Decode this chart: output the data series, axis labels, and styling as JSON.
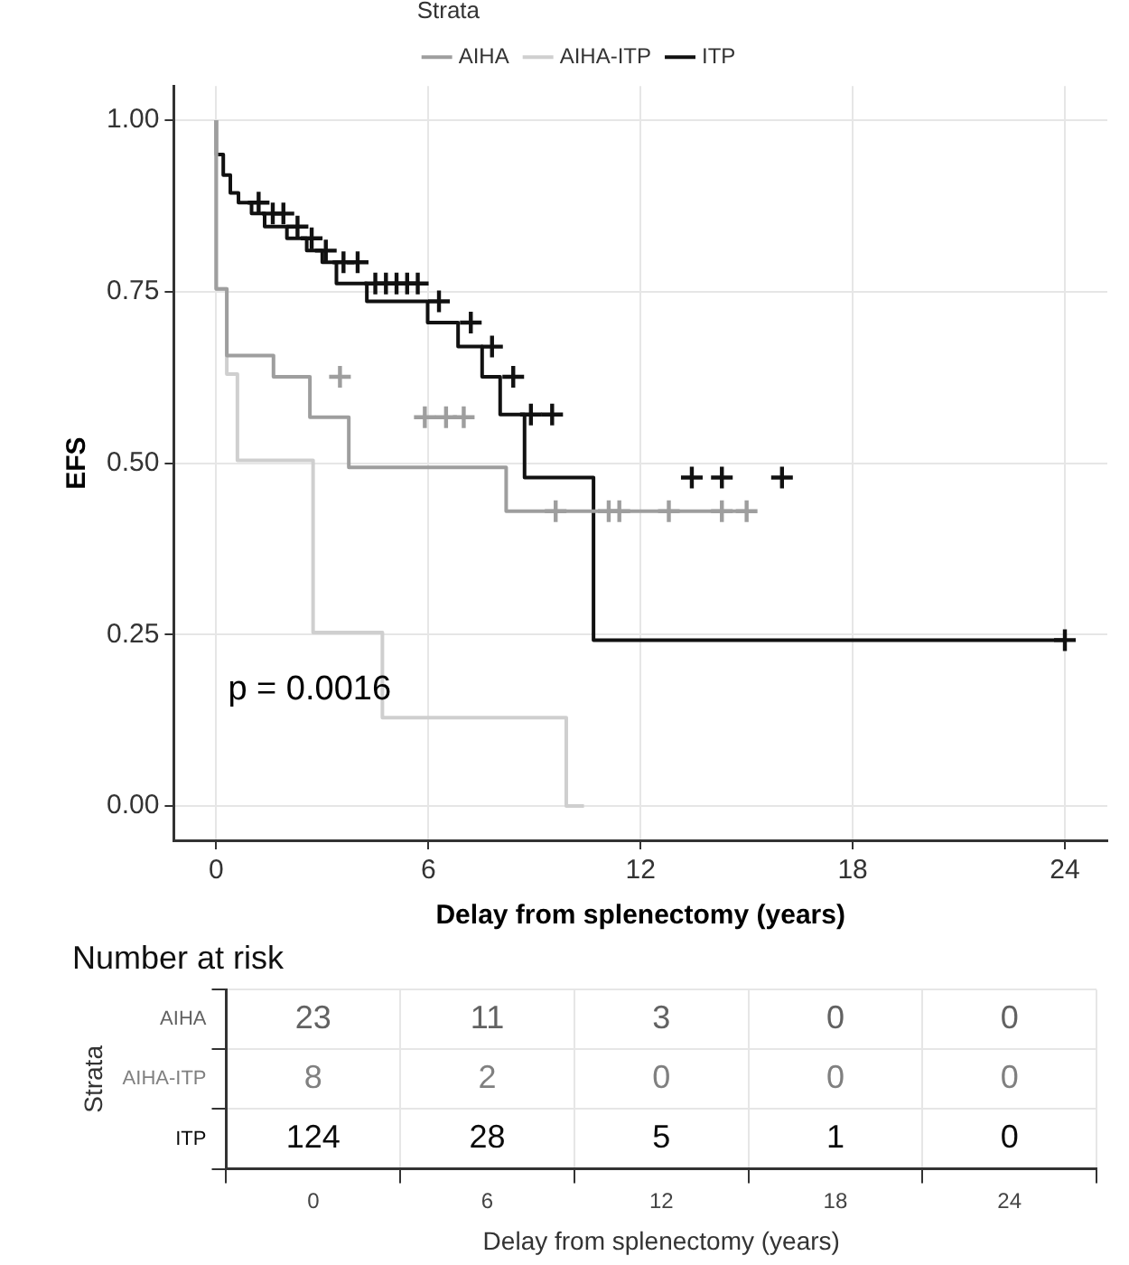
{
  "chart_data": [
    {
      "type": "step",
      "legend_title": "Strata",
      "legend": "top",
      "xlabel": "Delay from splenectomy (years)",
      "ylabel": "EFS",
      "annotations": [
        "p = 0.0016"
      ],
      "xlim": [
        -1.2,
        25.2
      ],
      "xticks": [
        0,
        6,
        12,
        18,
        24
      ],
      "ylim": [
        -0.05,
        1.05
      ],
      "yticks": [
        {
          "value": 0,
          "label": "0.00"
        },
        {
          "value": 0.25,
          "label": "0.25"
        },
        {
          "value": 0.5,
          "label": "0.50"
        },
        {
          "value": 0.75,
          "label": "0.75"
        },
        {
          "value": 1,
          "label": "1.00"
        }
      ],
      "grid": true,
      "series": [
        {
          "name": "AIHA",
          "color": "#9e9e9e",
          "x": [
            0,
            0.3,
            1.62,
            2.65,
            3.75,
            8.2,
            9.2,
            15.0
          ],
          "values": [
            1,
            0.754,
            0.657,
            0.626,
            0.567,
            0.494,
            0.43,
            0.43
          ]
        },
        {
          "name": "AIHA-ITP",
          "color": "#cfcfcf",
          "x": [
            0,
            0.3,
            0.6,
            2.74,
            4.7,
            9.9,
            10.4
          ],
          "values": [
            1,
            0.754,
            0.63,
            0.504,
            0.253,
            0.129,
            0
          ]
        },
        {
          "name": "ITP",
          "color": "#111111",
          "x": [
            0,
            0.2,
            0.4,
            0.63,
            1.0,
            1.37,
            2.0,
            2.56,
            3.0,
            3.4,
            4.26,
            5.98,
            6.84,
            7.52,
            8.03,
            8.72,
            10.67,
            17.2,
            24
          ],
          "values": [
            1,
            0.95,
            0.92,
            0.894,
            0.88,
            0.864,
            0.845,
            0.828,
            0.81,
            0.793,
            0.762,
            0.736,
            0.705,
            0.67,
            0.626,
            0.571,
            0.479,
            0.242,
            0.242
          ]
        },
        {
          "type": "scatter",
          "marker": "cross",
          "color": "#9e9e9e",
          "x": [
            3.5,
            5.9,
            6.5,
            7.0,
            9.6,
            11.1,
            11.4,
            12.8,
            14.3,
            15.0
          ],
          "values": [
            0.626,
            0.567,
            0.567,
            0.567,
            0.43,
            0.43,
            0.43,
            0.43,
            0.43,
            0.43
          ]
        },
        {
          "type": "scatter",
          "marker": "cross",
          "color": "#111111",
          "x": [
            1.2,
            1.6,
            1.9,
            2.3,
            2.7,
            3.1,
            3.6,
            4.0,
            4.5,
            4.8,
            5.1,
            5.4,
            5.7,
            6.3,
            7.2,
            7.8,
            8.4,
            8.9,
            9.5,
            13.45,
            14.3,
            16.0,
            24
          ],
          "values": [
            0.88,
            0.864,
            0.864,
            0.845,
            0.828,
            0.81,
            0.793,
            0.793,
            0.762,
            0.762,
            0.762,
            0.762,
            0.762,
            0.736,
            0.705,
            0.67,
            0.626,
            0.571,
            0.571,
            0.479,
            0.479,
            0.479,
            0.242
          ]
        }
      ]
    },
    {
      "type": "heatmap",
      "title": "Number at risk",
      "xlabel": "Delay from splenectomy (years)",
      "ylabel": "Strata",
      "categories": [
        "0",
        "6",
        "12",
        "18",
        "24"
      ],
      "y_categories": [
        "AIHA",
        "AIHA-ITP",
        "ITP"
      ],
      "cells": [
        [
          23,
          11,
          3,
          0,
          0
        ],
        [
          8,
          2,
          0,
          0,
          0
        ],
        [
          124,
          28,
          5,
          1,
          0
        ]
      ],
      "data_labels": true,
      "grid": true
    }
  ]
}
